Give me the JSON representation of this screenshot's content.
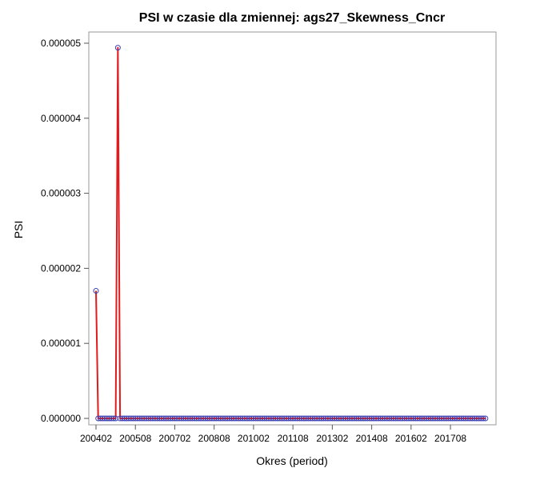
{
  "chart_data": {
    "type": "line",
    "title": "PSI w czasie dla zmiennej: ags27_Skewness_Cncr",
    "xlabel": "Okres (period)",
    "ylabel": "PSI",
    "x_tick_labels": [
      "200402",
      "200508",
      "200702",
      "200808",
      "201002",
      "201108",
      "201302",
      "201408",
      "201602",
      "201708"
    ],
    "y_tick_labels": [
      "0.000000",
      "0.000001",
      "0.000002",
      "0.000003",
      "0.000004",
      "0.000005"
    ],
    "ylim": [
      0,
      5e-06
    ],
    "xlim": [
      "200402",
      "201812"
    ],
    "grid": false,
    "line_color": "#e31a1c",
    "marker_color": "#3b3fb0",
    "series": [
      {
        "x_start": "200402",
        "x_end": "201812",
        "step_months": 1,
        "values": [
          1.7e-06,
          0.0,
          0.0,
          0.0,
          0.0,
          0.0,
          0.0,
          0.0,
          0.0,
          0.0,
          4.94e-06,
          0.0
        ]
      }
    ],
    "notes_values": "Series continues at 0.000000 for all remaining months through 201812."
  }
}
